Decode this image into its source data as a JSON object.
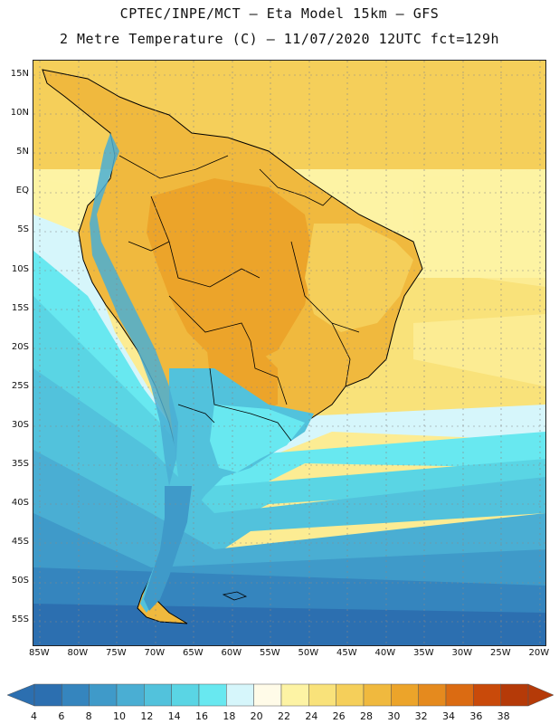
{
  "title": {
    "line1": "CPTEC/INPE/MCT –  Eta Model 15km – GFS",
    "line2": "2 Metre Temperature (C) – 11/07/2020 12UTC fct=129h"
  },
  "map": {
    "lat_ticks": [
      "15N",
      "10N",
      "5N",
      "EQ",
      "5S",
      "10S",
      "15S",
      "20S",
      "25S",
      "30S",
      "35S",
      "40S",
      "45S",
      "50S",
      "55S"
    ],
    "lon_ticks": [
      "85W",
      "80W",
      "75W",
      "70W",
      "65W",
      "60W",
      "55W",
      "50W",
      "45W",
      "40W",
      "35W",
      "30W",
      "25W",
      "20W"
    ],
    "region": "South America"
  },
  "colorbar": {
    "labels": [
      "4",
      "6",
      "8",
      "10",
      "12",
      "14",
      "16",
      "18",
      "20",
      "22",
      "24",
      "26",
      "28",
      "30",
      "32",
      "34",
      "36",
      "38"
    ],
    "colors": [
      "#2c6fb0",
      "#3585be",
      "#3f9ac9",
      "#4aaed3",
      "#52c2dc",
      "#5ad5e4",
      "#68e8f0",
      "#d6f6fb",
      "#fffbe8",
      "#fdf3a4",
      "#f9e27a",
      "#f5cf5a",
      "#f0b93e",
      "#eca42a",
      "#e58a1e",
      "#db6b12",
      "#c94a0a",
      "#b53a08"
    ]
  }
}
